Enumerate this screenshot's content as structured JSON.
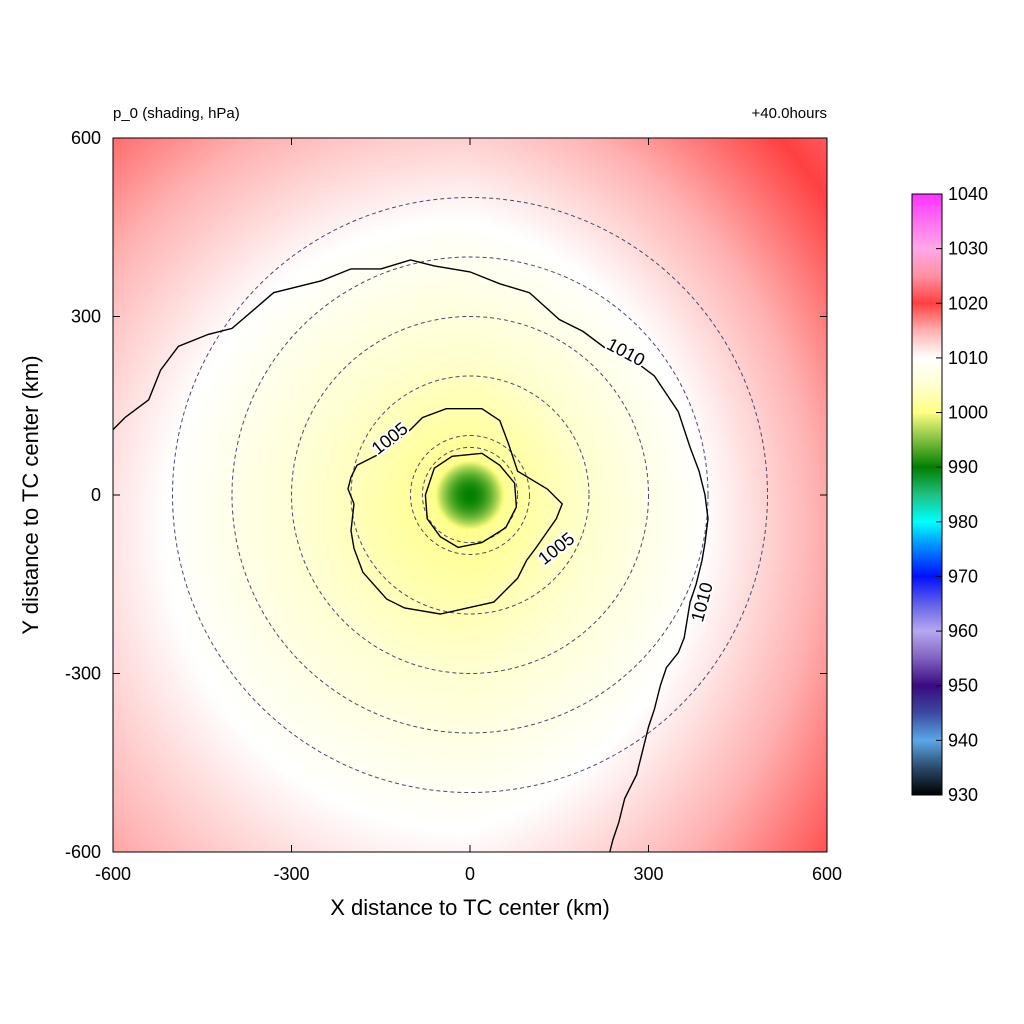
{
  "chart_data": {
    "type": "heatmap",
    "title_left": "p_0 (shading, hPa)",
    "title_right": "+40.0hours",
    "xlabel": "X distance to TC center (km)",
    "ylabel": "Y distance to TC center (km)",
    "xlim": [
      -600,
      600
    ],
    "ylim": [
      -600,
      600
    ],
    "x_ticks": [
      -600,
      -300,
      0,
      300,
      600
    ],
    "y_ticks": [
      -600,
      -300,
      0,
      300,
      600
    ],
    "x_tick_labels": [
      "-600",
      "-300",
      "0",
      "300",
      "600"
    ],
    "y_tick_labels": [
      "-600",
      "-300",
      "0",
      "300",
      "600"
    ],
    "colorbar": {
      "min": 930,
      "max": 1040,
      "tick_values": [
        930,
        940,
        950,
        960,
        970,
        980,
        990,
        1000,
        1010,
        1020,
        1030,
        1040
      ],
      "tick_labels": [
        "930",
        "940",
        "950",
        "960",
        "970",
        "980",
        "990",
        "1000",
        "1010",
        "1020",
        "1030",
        "1040"
      ],
      "colors": [
        {
          "value": 930,
          "color": "#000000"
        },
        {
          "value": 935,
          "color": "#2a4a6a"
        },
        {
          "value": 940,
          "color": "#5aa8e8"
        },
        {
          "value": 945,
          "color": "#3a4aa0"
        },
        {
          "value": 950,
          "color": "#3a0a80"
        },
        {
          "value": 955,
          "color": "#8060c0"
        },
        {
          "value": 960,
          "color": "#b8a8f0"
        },
        {
          "value": 965,
          "color": "#6060e8"
        },
        {
          "value": 970,
          "color": "#0010ff"
        },
        {
          "value": 975,
          "color": "#0080ff"
        },
        {
          "value": 980,
          "color": "#00ffff"
        },
        {
          "value": 985,
          "color": "#20c080"
        },
        {
          "value": 990,
          "color": "#008000"
        },
        {
          "value": 995,
          "color": "#80c040"
        },
        {
          "value": 1000,
          "color": "#ffff80"
        },
        {
          "value": 1005,
          "color": "#ffffd0"
        },
        {
          "value": 1010,
          "color": "#ffffff"
        },
        {
          "value": 1015,
          "color": "#ffb0b0"
        },
        {
          "value": 1020,
          "color": "#ff4040"
        },
        {
          "value": 1025,
          "color": "#ff90a0"
        },
        {
          "value": 1030,
          "color": "#ffa8e8"
        },
        {
          "value": 1035,
          "color": "#ff70f0"
        },
        {
          "value": 1040,
          "color": "#ff30ff"
        }
      ]
    },
    "field": {
      "center": [
        0,
        0
      ],
      "center_value": 990,
      "core_radius_km": 60,
      "ring_value_at_core": 1001,
      "gradient_per_km": 0.02,
      "east_bias_per_km": 0.006,
      "north_bias_per_km": 0.002
    },
    "range_rings_km": [
      80,
      100,
      200,
      300,
      400,
      500
    ],
    "contours": [
      {
        "value": 1005,
        "labels": [
          {
            "text": "1005",
            "x": -135,
            "y": 95,
            "angle": -38
          },
          {
            "text": "1005",
            "x": 145,
            "y": -90,
            "angle": -38
          }
        ],
        "points": [
          [
            -195,
            -15
          ],
          [
            -205,
            10
          ],
          [
            -200,
            30
          ],
          [
            -190,
            50
          ],
          [
            -150,
            70
          ],
          [
            -100,
            110
          ],
          [
            -80,
            130
          ],
          [
            -40,
            145
          ],
          [
            20,
            145
          ],
          [
            50,
            125
          ],
          [
            65,
            85
          ],
          [
            80,
            40
          ],
          [
            130,
            10
          ],
          [
            155,
            -15
          ],
          [
            145,
            -40
          ],
          [
            110,
            -90
          ],
          [
            95,
            -110
          ],
          [
            80,
            -140
          ],
          [
            40,
            -180
          ],
          [
            -50,
            -200
          ],
          [
            -110,
            -190
          ],
          [
            -140,
            -175
          ],
          [
            -180,
            -130
          ],
          [
            -195,
            -90
          ],
          [
            -200,
            -60
          ],
          [
            -195,
            -15
          ]
        ]
      },
      {
        "value": 1000,
        "labels": [],
        "points": [
          [
            -75,
            0
          ],
          [
            -60,
            45
          ],
          [
            -30,
            65
          ],
          [
            20,
            70
          ],
          [
            50,
            50
          ],
          [
            75,
            20
          ],
          [
            78,
            -20
          ],
          [
            60,
            -55
          ],
          [
            20,
            -80
          ],
          [
            -20,
            -88
          ],
          [
            -50,
            -70
          ],
          [
            -72,
            -40
          ],
          [
            -75,
            0
          ]
        ]
      },
      {
        "value": 1010,
        "labels": [
          {
            "text": "1010",
            "x": 262,
            "y": 240,
            "angle": 28
          },
          {
            "text": "1010",
            "x": 390,
            "y": -180,
            "angle": -75
          }
        ],
        "points": [
          [
            -600,
            110
          ],
          [
            -580,
            130
          ],
          [
            -540,
            160
          ],
          [
            -520,
            210
          ],
          [
            -490,
            250
          ],
          [
            -440,
            270
          ],
          [
            -400,
            280
          ],
          [
            -330,
            340
          ],
          [
            -250,
            360
          ],
          [
            -200,
            380
          ],
          [
            -150,
            380
          ],
          [
            -100,
            395
          ],
          [
            -60,
            385
          ],
          [
            0,
            375
          ],
          [
            50,
            355
          ],
          [
            100,
            340
          ],
          [
            150,
            295
          ],
          [
            190,
            275
          ],
          [
            230,
            245
          ],
          [
            270,
            230
          ],
          [
            310,
            200
          ],
          [
            330,
            170
          ],
          [
            350,
            140
          ],
          [
            370,
            80
          ],
          [
            385,
            40
          ],
          [
            395,
            0
          ],
          [
            400,
            -40
          ],
          [
            395,
            -80
          ],
          [
            390,
            -110
          ],
          [
            380,
            -150
          ],
          [
            370,
            -180
          ],
          [
            360,
            -240
          ],
          [
            350,
            -265
          ],
          [
            330,
            -290
          ],
          [
            320,
            -320
          ],
          [
            310,
            -360
          ],
          [
            300,
            -390
          ],
          [
            290,
            -430
          ],
          [
            280,
            -470
          ],
          [
            260,
            -510
          ],
          [
            250,
            -550
          ],
          [
            240,
            -580
          ],
          [
            235,
            -600
          ]
        ]
      }
    ]
  }
}
